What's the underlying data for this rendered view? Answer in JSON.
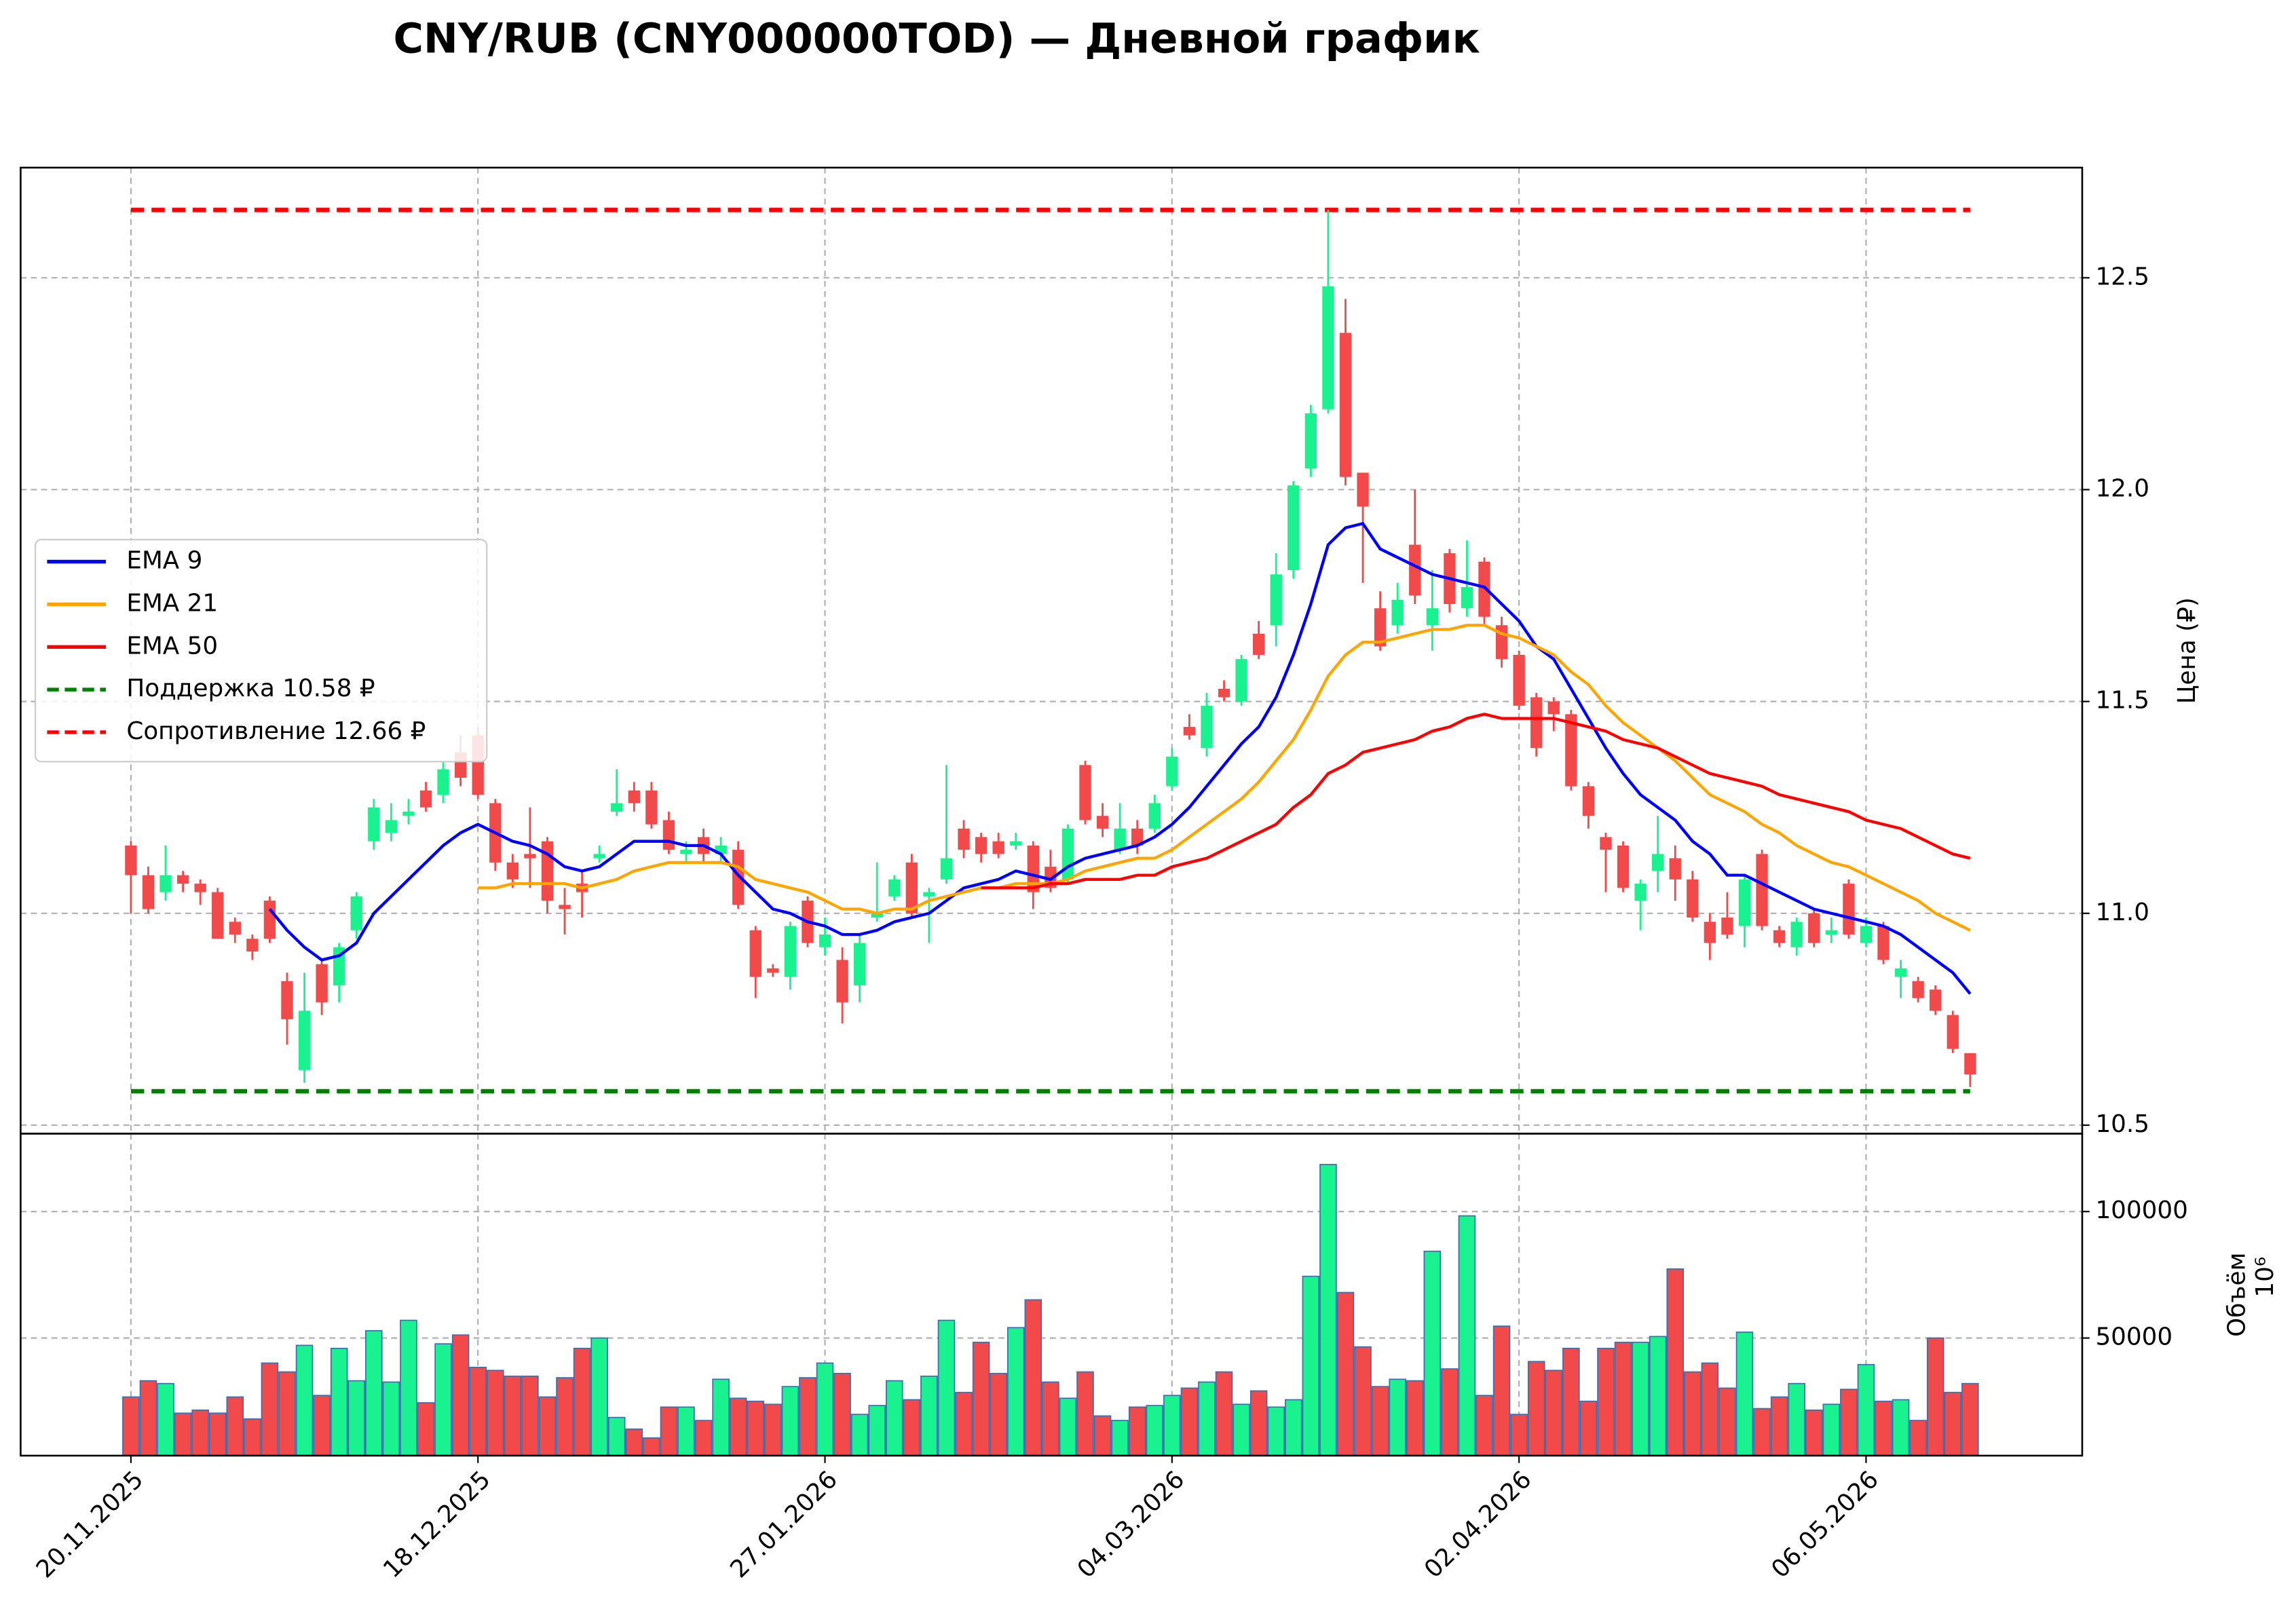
{
  "chart_data": [
    {
      "type": "candlestick",
      "title": "CNY/RUB (CNY000000TOD) — Дневной график",
      "ylabel": "Цена (₽)",
      "ylim": [
        10.48,
        12.76
      ],
      "yticks": [
        10.5,
        {
          "value": 11,
          "label": "11.0"
        },
        11.5,
        {
          "value": 12,
          "label": "12.0"
        },
        12.5
      ],
      "grid": true,
      "legend": "center left",
      "up_color": "#19f28e",
      "down_color": "#f24a4a",
      "open": [
        11.16,
        11.09,
        11.05,
        11.09,
        11.07,
        11.05,
        10.98,
        10.94,
        11.03,
        10.84,
        10.63,
        10.88,
        10.83,
        10.96,
        11.17,
        11.19,
        11.23,
        11.29,
        11.28,
        11.38,
        11.42,
        11.26,
        11.12,
        11.14,
        11.17,
        11.02,
        11.07,
        11.13,
        11.24,
        11.29,
        11.29,
        11.22,
        11.14,
        11.18,
        11.14,
        11.15,
        10.96,
        10.87,
        10.85,
        11.03,
        10.92,
        10.89,
        10.83,
        10.99,
        11.04,
        11.12,
        11.04,
        11.08,
        11.2,
        11.18,
        11.17,
        11.16,
        11.16,
        11.11,
        11.08,
        11.35,
        11.23,
        11.15,
        11.2,
        11.2,
        11.3,
        11.44,
        11.39,
        11.53,
        11.5,
        11.66,
        11.68,
        11.81,
        12.05,
        12.19,
        12.37,
        12.04,
        11.72,
        11.68,
        11.87,
        11.68,
        11.85,
        11.72,
        11.83,
        11.68,
        11.61,
        11.51,
        11.5,
        11.47,
        11.3,
        11.18,
        11.16,
        11.03,
        11.1,
        11.13,
        11.08,
        10.98,
        10.99,
        10.97,
        11.14,
        10.96,
        10.92,
        11.0,
        10.95,
        11.07,
        10.93,
        10.97,
        10.85,
        10.84,
        10.82,
        10.76,
        10.67
      ],
      "high": [
        11.17,
        11.11,
        11.16,
        11.1,
        11.08,
        11.06,
        10.99,
        10.95,
        11.04,
        10.86,
        10.86,
        10.89,
        10.93,
        11.05,
        11.27,
        11.26,
        11.27,
        11.31,
        11.36,
        11.42,
        11.44,
        11.27,
        11.14,
        11.25,
        11.18,
        11.06,
        11.1,
        11.16,
        11.34,
        11.31,
        11.31,
        11.24,
        11.17,
        11.2,
        11.18,
        11.17,
        10.97,
        10.88,
        10.98,
        11.04,
        10.99,
        10.92,
        10.95,
        11.12,
        11.09,
        11.14,
        11.06,
        11.35,
        11.22,
        11.19,
        11.19,
        11.19,
        11.17,
        11.15,
        11.21,
        11.36,
        11.26,
        11.26,
        11.22,
        11.28,
        11.39,
        11.47,
        11.52,
        11.55,
        11.61,
        11.69,
        11.85,
        12.02,
        12.2,
        12.66,
        12.45,
        12.04,
        11.76,
        11.78,
        12.0,
        11.81,
        11.86,
        11.88,
        11.84,
        11.7,
        11.62,
        11.52,
        11.51,
        11.48,
        11.31,
        11.19,
        11.17,
        11.08,
        11.23,
        11.16,
        11.1,
        11.0,
        11.05,
        11.09,
        11.15,
        10.97,
        10.99,
        11.01,
        10.99,
        11.08,
        10.99,
        10.98,
        10.89,
        10.85,
        10.83,
        10.77,
        10.67
      ],
      "low": [
        11.0,
        11.0,
        11.03,
        11.05,
        11.02,
        10.94,
        10.93,
        10.89,
        10.93,
        10.69,
        10.6,
        10.76,
        10.79,
        10.94,
        11.15,
        11.17,
        11.21,
        11.24,
        11.26,
        11.3,
        11.27,
        11.1,
        11.06,
        11.06,
        11.0,
        10.95,
        10.99,
        11.12,
        11.23,
        11.24,
        11.2,
        11.14,
        11.12,
        11.12,
        11.12,
        11.01,
        10.8,
        10.85,
        10.82,
        10.92,
        10.9,
        10.74,
        10.79,
        10.98,
        11.03,
        10.99,
        10.93,
        11.07,
        11.13,
        11.12,
        11.13,
        11.15,
        11.01,
        11.05,
        11.07,
        11.21,
        11.18,
        11.14,
        11.14,
        11.19,
        11.29,
        11.41,
        11.37,
        11.5,
        11.49,
        11.6,
        11.63,
        11.79,
        12.03,
        12.18,
        12.01,
        11.78,
        11.62,
        11.66,
        11.73,
        11.62,
        11.71,
        11.7,
        11.68,
        11.58,
        11.48,
        11.37,
        11.43,
        11.29,
        11.2,
        11.05,
        11.05,
        10.96,
        11.05,
        11.03,
        10.98,
        10.89,
        10.94,
        10.92,
        10.96,
        10.92,
        10.9,
        10.92,
        10.93,
        10.94,
        10.92,
        10.88,
        10.8,
        10.79,
        10.76,
        10.67,
        10.59
      ],
      "close": [
        11.09,
        11.01,
        11.09,
        11.07,
        11.05,
        10.94,
        10.95,
        10.91,
        10.94,
        10.75,
        10.77,
        10.79,
        10.92,
        11.04,
        11.25,
        11.22,
        11.24,
        11.25,
        11.34,
        11.32,
        11.28,
        11.12,
        11.08,
        11.13,
        11.03,
        11.01,
        11.05,
        11.14,
        11.26,
        11.26,
        11.21,
        11.15,
        11.15,
        11.14,
        11.16,
        11.02,
        10.85,
        10.86,
        10.97,
        10.93,
        10.95,
        10.79,
        10.93,
        11.0,
        11.08,
        11.0,
        11.05,
        11.13,
        11.15,
        11.14,
        11.14,
        11.17,
        11.05,
        11.06,
        11.2,
        11.22,
        11.2,
        11.2,
        11.16,
        11.26,
        11.37,
        11.42,
        11.49,
        11.51,
        11.6,
        11.61,
        11.8,
        12.01,
        12.18,
        12.48,
        12.03,
        11.96,
        11.63,
        11.74,
        11.75,
        11.72,
        11.73,
        11.77,
        11.7,
        11.6,
        11.49,
        11.39,
        11.47,
        11.3,
        11.23,
        11.15,
        11.06,
        11.07,
        11.14,
        11.08,
        10.99,
        10.93,
        10.95,
        11.08,
        10.97,
        10.93,
        10.98,
        10.93,
        10.96,
        10.95,
        10.97,
        10.89,
        10.87,
        10.8,
        10.77,
        10.68,
        10.62
      ],
      "series": [
        {
          "name": "EMA 9",
          "color": "#0000ff",
          "values": [
            null,
            null,
            null,
            null,
            null,
            null,
            null,
            null,
            11.01,
            10.96,
            10.92,
            10.89,
            10.9,
            10.93,
            11.0,
            11.04,
            11.08,
            11.12,
            11.16,
            11.19,
            11.21,
            11.19,
            11.17,
            11.16,
            11.14,
            11.11,
            11.1,
            11.11,
            11.14,
            11.17,
            11.17,
            11.17,
            11.16,
            11.16,
            11.14,
            11.09,
            11.05,
            11.01,
            11.0,
            10.98,
            10.97,
            10.95,
            10.95,
            10.96,
            10.98,
            10.99,
            11.0,
            11.03,
            11.06,
            11.07,
            11.08,
            11.1,
            11.09,
            11.08,
            11.11,
            11.13,
            11.14,
            11.15,
            11.16,
            11.18,
            11.21,
            11.25,
            11.3,
            11.35,
            11.4,
            11.44,
            11.51,
            11.61,
            11.73,
            11.87,
            11.91,
            11.92,
            11.86,
            11.84,
            11.82,
            11.8,
            11.79,
            11.78,
            11.77,
            11.73,
            11.69,
            11.63,
            11.6,
            11.53,
            11.46,
            11.39,
            11.33,
            11.28,
            11.25,
            11.22,
            11.17,
            11.14,
            11.09,
            11.09,
            11.07,
            11.05,
            11.03,
            11.01,
            11.0,
            10.99,
            10.98,
            10.97,
            10.95,
            10.92,
            10.89,
            10.86,
            10.81
          ]
        },
        {
          "name": "EMA 21",
          "color": "#ffa500",
          "values": [
            null,
            null,
            null,
            null,
            null,
            null,
            null,
            null,
            null,
            null,
            null,
            null,
            null,
            null,
            null,
            null,
            null,
            null,
            null,
            null,
            11.06,
            11.06,
            11.07,
            11.07,
            11.07,
            11.07,
            11.06,
            11.07,
            11.08,
            11.1,
            11.11,
            11.12,
            11.12,
            11.12,
            11.12,
            11.11,
            11.08,
            11.07,
            11.06,
            11.05,
            11.03,
            11.01,
            11.01,
            11.0,
            11.01,
            11.01,
            11.03,
            11.04,
            11.05,
            11.06,
            11.06,
            11.07,
            11.07,
            11.07,
            11.08,
            11.1,
            11.11,
            11.12,
            11.13,
            11.13,
            11.15,
            11.18,
            11.21,
            11.24,
            11.27,
            11.31,
            11.36,
            11.41,
            11.48,
            11.56,
            11.61,
            11.64,
            11.64,
            11.65,
            11.66,
            11.67,
            11.67,
            11.68,
            11.68,
            11.66,
            11.65,
            11.63,
            11.61,
            11.57,
            11.54,
            11.49,
            11.45,
            11.42,
            11.39,
            11.36,
            11.32,
            11.28,
            11.26,
            11.24,
            11.21,
            11.19,
            11.16,
            11.14,
            11.12,
            11.11,
            11.09,
            11.07,
            11.05,
            11.03,
            11.0,
            10.98,
            10.96
          ]
        },
        {
          "name": "EMA 50",
          "color": "#ff0000",
          "values": [
            null,
            null,
            null,
            null,
            null,
            null,
            null,
            null,
            null,
            null,
            null,
            null,
            null,
            null,
            null,
            null,
            null,
            null,
            null,
            null,
            null,
            null,
            null,
            null,
            null,
            null,
            null,
            null,
            null,
            null,
            null,
            null,
            null,
            null,
            null,
            null,
            null,
            null,
            null,
            null,
            null,
            null,
            null,
            null,
            null,
            null,
            null,
            null,
            null,
            11.06,
            11.06,
            11.06,
            11.06,
            11.07,
            11.07,
            11.08,
            11.08,
            11.08,
            11.09,
            11.09,
            11.11,
            11.12,
            11.13,
            11.15,
            11.17,
            11.19,
            11.21,
            11.25,
            11.28,
            11.33,
            11.35,
            11.38,
            11.39,
            11.4,
            11.41,
            11.43,
            11.44,
            11.46,
            11.47,
            11.46,
            11.46,
            11.46,
            11.46,
            11.45,
            11.44,
            11.43,
            11.41,
            11.4,
            11.39,
            11.37,
            11.35,
            11.33,
            11.32,
            11.31,
            11.3,
            11.28,
            11.27,
            11.26,
            11.25,
            11.24,
            11.22,
            11.21,
            11.2,
            11.18,
            11.16,
            11.14,
            11.13
          ]
        }
      ],
      "levels": [
        {
          "name": "Поддержка 10.58 ₽",
          "value": 10.58,
          "color": "#008000"
        },
        {
          "name": "Сопротивление 12.66 ₽",
          "value": 12.66,
          "color": "#ff0000"
        }
      ]
    },
    {
      "type": "bar",
      "ylabel": "Объём",
      "offset_label": "10⁶",
      "ylim": [
        3500,
        130800
      ],
      "yticks": [
        50000,
        100000
      ],
      "grid": true,
      "edge_color": "#3a6fb0",
      "categories": [
        "20.11.2025",
        null,
        null,
        null,
        null,
        null,
        null,
        null,
        null,
        null,
        null,
        null,
        null,
        null,
        null,
        null,
        null,
        null,
        null,
        null,
        "18.12.2025",
        null,
        null,
        null,
        null,
        null,
        null,
        null,
        null,
        null,
        null,
        null,
        null,
        null,
        null,
        null,
        null,
        null,
        null,
        null,
        "27.01.2026",
        null,
        null,
        null,
        null,
        null,
        null,
        null,
        null,
        null,
        null,
        null,
        null,
        null,
        null,
        null,
        null,
        null,
        null,
        null,
        "04.03.2026",
        null,
        null,
        null,
        null,
        null,
        null,
        null,
        null,
        null,
        null,
        null,
        null,
        null,
        null,
        null,
        null,
        null,
        null,
        null,
        "02.04.2026",
        null,
        null,
        null,
        null,
        null,
        null,
        null,
        null,
        null,
        null,
        null,
        null,
        null,
        null,
        null,
        null,
        null,
        null,
        null,
        "06.05.2026",
        null,
        null,
        null,
        null,
        null,
        null
      ],
      "values": [
        26700,
        33100,
        32000,
        20300,
        21500,
        20300,
        26700,
        18000,
        40100,
        36600,
        47100,
        27300,
        45900,
        33100,
        52900,
        32600,
        57000,
        24400,
        47700,
        51200,
        38400,
        37200,
        34900,
        34900,
        26700,
        34300,
        45900,
        50000,
        18600,
        14000,
        10500,
        22700,
        22700,
        17400,
        33700,
        26200,
        25000,
        23800,
        30800,
        34300,
        40100,
        36000,
        19800,
        23300,
        33100,
        25600,
        34900,
        57000,
        28500,
        48300,
        36000,
        54100,
        65100,
        32600,
        26200,
        36600,
        19200,
        17400,
        22700,
        23300,
        27300,
        30200,
        32600,
        36600,
        23800,
        29100,
        22700,
        25600,
        74400,
        118600,
        68000,
        46500,
        30800,
        33700,
        33100,
        84300,
        37800,
        98300,
        27300,
        54700,
        19800,
        40700,
        37200,
        45900,
        25000,
        45900,
        48300,
        48300,
        50600,
        77300,
        36600,
        40100,
        30200,
        52300,
        22100,
        26700,
        32000,
        21500,
        23800,
        29700,
        39500,
        25000,
        25600,
        17400,
        50000,
        28500,
        32000
      ]
    }
  ]
}
